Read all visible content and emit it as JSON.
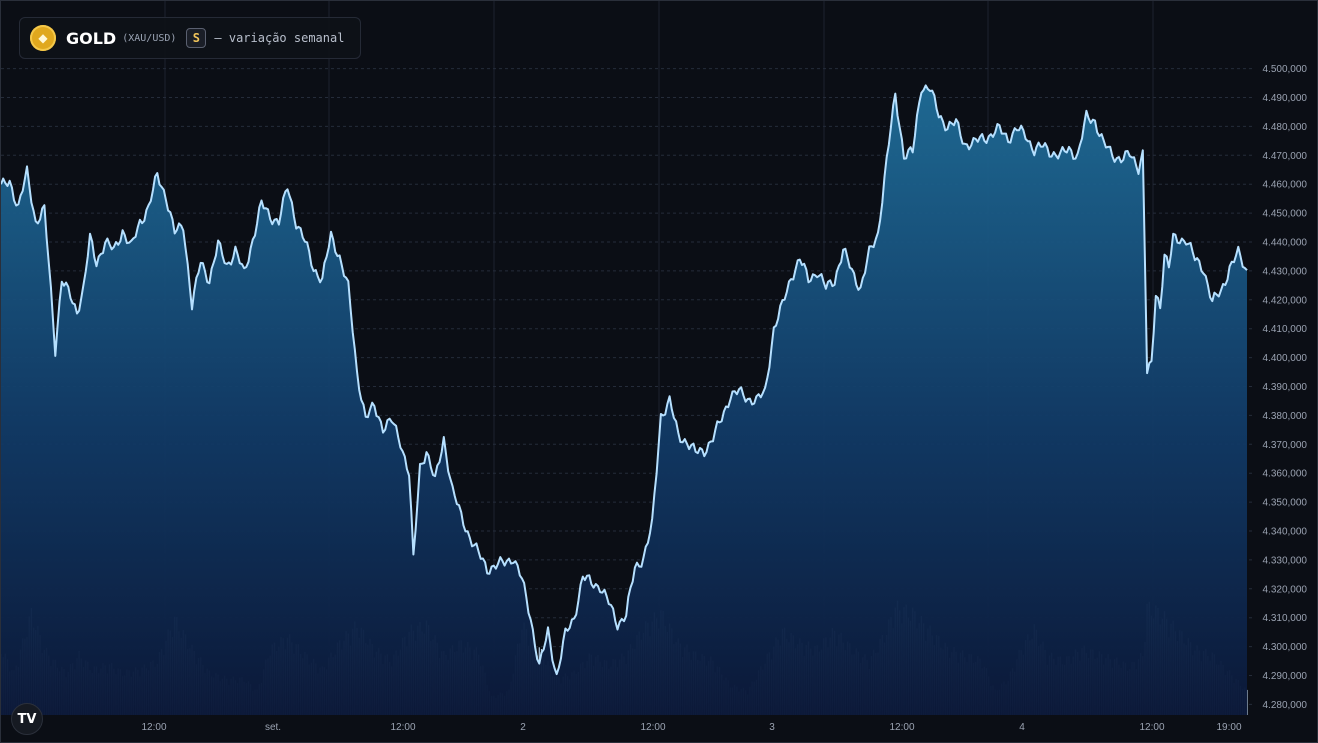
{
  "header": {
    "symbol": "GOLD",
    "pair": "(XAU/USD)",
    "badge": "S",
    "description": "— variação semanal",
    "coin_icon": "gold-diamond-icon"
  },
  "logo": {
    "text": "TV",
    "icon": "tradingview-logo-icon"
  },
  "colors": {
    "background": "#0b0e15",
    "line": "#b6e0ff",
    "area_top": "#1e6a96",
    "area_bottom": "#0b1a3a",
    "volume": "#c9e4ff",
    "grid": "#2a3140",
    "axis_text": "#9ba3b2"
  },
  "chart_data": {
    "type": "area",
    "x_ticks": [
      "12:00",
      "set.",
      "12:00",
      "2",
      "12:00",
      "3",
      "12:00",
      "4",
      "12:00",
      "19:00"
    ],
    "y_ticks": [
      "4.500,000",
      "4.490,000",
      "4.480,000",
      "4.470,000",
      "4.460,000",
      "4.450,000",
      "4.440,000",
      "4.430,000",
      "4.420,000",
      "4.410,000",
      "4.400,000",
      "4.390,000",
      "4.380,000",
      "4.370,000",
      "4.360,000",
      "4.350,000",
      "4.340,000",
      "4.330,000",
      "4.320,000",
      "4.310,000",
      "4.300,000",
      "4.290,000",
      "4.280,000"
    ],
    "ylim": [
      4278,
      4510
    ],
    "grid": true,
    "price_series": {
      "name": "",
      "keypoints": [
        [
          0,
          4459
        ],
        [
          4,
          4461
        ],
        [
          8,
          4452
        ],
        [
          12,
          4464
        ],
        [
          16,
          4447
        ],
        [
          20,
          4451
        ],
        [
          23,
          4423
        ],
        [
          25,
          4403
        ],
        [
          28,
          4427
        ],
        [
          32,
          4421
        ],
        [
          35,
          4416
        ],
        [
          38,
          4424
        ],
        [
          41,
          4441
        ],
        [
          44,
          4433
        ],
        [
          48,
          4440
        ],
        [
          52,
          4437
        ],
        [
          56,
          4444
        ],
        [
          60,
          4438
        ],
        [
          64,
          4447
        ],
        [
          68,
          4452
        ],
        [
          72,
          4463
        ],
        [
          76,
          4456
        ],
        [
          80,
          4443
        ],
        [
          84,
          4446
        ],
        [
          88,
          4418
        ],
        [
          92,
          4433
        ],
        [
          96,
          4427
        ],
        [
          100,
          4439
        ],
        [
          104,
          4432
        ],
        [
          108,
          4437
        ],
        [
          112,
          4429
        ],
        [
          116,
          4441
        ],
        [
          120,
          4453
        ],
        [
          124,
          4449
        ],
        [
          128,
          4447
        ],
        [
          132,
          4459
        ],
        [
          136,
          4447
        ],
        [
          140,
          4440
        ],
        [
          144,
          4431
        ],
        [
          148,
          4427
        ],
        [
          152,
          4442
        ],
        [
          156,
          4435
        ],
        [
          160,
          4424
        ],
        [
          164,
          4395
        ],
        [
          168,
          4379
        ],
        [
          172,
          4383
        ],
        [
          176,
          4376
        ],
        [
          180,
          4378
        ],
        [
          184,
          4371
        ],
        [
          188,
          4360
        ],
        [
          190,
          4330
        ],
        [
          193,
          4362
        ],
        [
          196,
          4368
        ],
        [
          200,
          4357
        ],
        [
          204,
          4372
        ],
        [
          208,
          4354
        ],
        [
          212,
          4345
        ],
        [
          216,
          4338
        ],
        [
          220,
          4332
        ],
        [
          224,
          4327
        ],
        [
          228,
          4328
        ],
        [
          232,
          4329
        ],
        [
          236,
          4331
        ],
        [
          240,
          4323
        ],
        [
          244,
          4310
        ],
        [
          248,
          4293
        ],
        [
          252,
          4305
        ],
        [
          256,
          4290
        ],
        [
          260,
          4304
        ],
        [
          264,
          4310
        ],
        [
          268,
          4324
        ],
        [
          272,
          4322
        ],
        [
          276,
          4321
        ],
        [
          280,
          4315
        ],
        [
          284,
          4308
        ],
        [
          288,
          4311
        ],
        [
          292,
          4327
        ],
        [
          296,
          4331
        ],
        [
          300,
          4342
        ],
        [
          304,
          4380
        ],
        [
          308,
          4385
        ],
        [
          312,
          4373
        ],
        [
          316,
          4371
        ],
        [
          320,
          4367
        ],
        [
          324,
          4368
        ],
        [
          328,
          4372
        ],
        [
          332,
          4379
        ],
        [
          336,
          4387
        ],
        [
          340,
          4388
        ],
        [
          344,
          4386
        ],
        [
          348,
          4385
        ],
        [
          352,
          4388
        ],
        [
          356,
          4410
        ],
        [
          360,
          4418
        ],
        [
          364,
          4428
        ],
        [
          368,
          4434
        ],
        [
          372,
          4427
        ],
        [
          376,
          4430
        ],
        [
          380,
          4424
        ],
        [
          384,
          4427
        ],
        [
          388,
          4437
        ],
        [
          392,
          4430
        ],
        [
          396,
          4424
        ],
        [
          400,
          4436
        ],
        [
          404,
          4443
        ],
        [
          408,
          4468
        ],
        [
          412,
          4491
        ],
        [
          416,
          4470
        ],
        [
          420,
          4471
        ],
        [
          424,
          4494
        ],
        [
          428,
          4493
        ],
        [
          432,
          4484
        ],
        [
          436,
          4480
        ],
        [
          440,
          4481
        ],
        [
          444,
          4474
        ],
        [
          448,
          4474
        ],
        [
          452,
          4476
        ],
        [
          456,
          4477
        ],
        [
          460,
          4479
        ],
        [
          464,
          4476
        ],
        [
          468,
          4479
        ],
        [
          472,
          4477
        ],
        [
          476,
          4472
        ],
        [
          480,
          4473
        ],
        [
          484,
          4471
        ],
        [
          488,
          4470
        ],
        [
          492,
          4472
        ],
        [
          496,
          4470
        ],
        [
          500,
          4483
        ],
        [
          504,
          4482
        ],
        [
          508,
          4474
        ],
        [
          512,
          4470
        ],
        [
          516,
          4469
        ],
        [
          520,
          4470
        ],
        [
          524,
          4466
        ],
        [
          526,
          4471
        ],
        [
          528,
          4395
        ],
        [
          530,
          4397
        ],
        [
          532,
          4422
        ],
        [
          534,
          4418
        ],
        [
          536,
          4436
        ],
        [
          538,
          4431
        ],
        [
          540,
          4441
        ],
        [
          542,
          4441
        ],
        [
          546,
          4441
        ],
        [
          550,
          4434
        ],
        [
          554,
          4431
        ],
        [
          558,
          4419
        ],
        [
          562,
          4423
        ],
        [
          566,
          4431
        ],
        [
          570,
          4436
        ],
        [
          574,
          4430
        ]
      ]
    },
    "volume_series": {
      "name": "",
      "keypoints": [
        [
          0,
          0.55
        ],
        [
          6,
          0.35
        ],
        [
          14,
          0.85
        ],
        [
          20,
          0.55
        ],
        [
          24,
          0.45
        ],
        [
          30,
          0.35
        ],
        [
          36,
          0.5
        ],
        [
          42,
          0.38
        ],
        [
          50,
          0.42
        ],
        [
          56,
          0.35
        ],
        [
          64,
          0.38
        ],
        [
          72,
          0.45
        ],
        [
          80,
          0.8
        ],
        [
          88,
          0.55
        ],
        [
          96,
          0.35
        ],
        [
          104,
          0.3
        ],
        [
          112,
          0.3
        ],
        [
          118,
          0.2
        ],
        [
          124,
          0.55
        ],
        [
          132,
          0.65
        ],
        [
          140,
          0.5
        ],
        [
          148,
          0.38
        ],
        [
          156,
          0.6
        ],
        [
          164,
          0.75
        ],
        [
          172,
          0.55
        ],
        [
          180,
          0.45
        ],
        [
          188,
          0.7
        ],
        [
          196,
          0.75
        ],
        [
          204,
          0.5
        ],
        [
          212,
          0.6
        ],
        [
          220,
          0.52
        ],
        [
          226,
          0.15
        ],
        [
          234,
          0.2
        ],
        [
          240,
          0.75
        ],
        [
          248,
          0.55
        ],
        [
          256,
          0.3
        ],
        [
          264,
          0.35
        ],
        [
          272,
          0.5
        ],
        [
          280,
          0.42
        ],
        [
          288,
          0.5
        ],
        [
          296,
          0.72
        ],
        [
          304,
          0.85
        ],
        [
          312,
          0.6
        ],
        [
          320,
          0.5
        ],
        [
          328,
          0.45
        ],
        [
          336,
          0.25
        ],
        [
          344,
          0.2
        ],
        [
          352,
          0.45
        ],
        [
          360,
          0.7
        ],
        [
          368,
          0.6
        ],
        [
          376,
          0.55
        ],
        [
          384,
          0.7
        ],
        [
          392,
          0.55
        ],
        [
          400,
          0.45
        ],
        [
          408,
          0.7
        ],
        [
          412,
          0.9
        ],
        [
          420,
          0.85
        ],
        [
          428,
          0.7
        ],
        [
          436,
          0.55
        ],
        [
          444,
          0.5
        ],
        [
          452,
          0.45
        ],
        [
          458,
          0.2
        ],
        [
          464,
          0.3
        ],
        [
          470,
          0.55
        ],
        [
          476,
          0.72
        ],
        [
          482,
          0.5
        ],
        [
          490,
          0.45
        ],
        [
          498,
          0.55
        ],
        [
          506,
          0.5
        ],
        [
          514,
          0.45
        ],
        [
          520,
          0.4
        ],
        [
          526,
          0.5
        ],
        [
          528,
          0.9
        ],
        [
          534,
          0.85
        ],
        [
          542,
          0.7
        ],
        [
          550,
          0.55
        ],
        [
          558,
          0.5
        ],
        [
          566,
          0.35
        ],
        [
          574,
          0.2
        ]
      ]
    }
  }
}
